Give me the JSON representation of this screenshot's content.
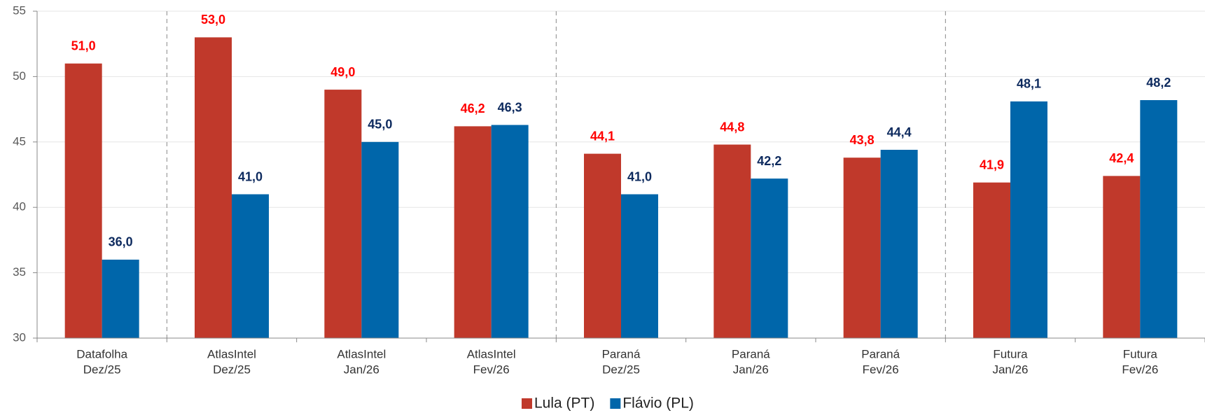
{
  "chart_data": {
    "type": "bar",
    "categories": [
      [
        "Datafolha",
        "Dez/25"
      ],
      [
        "AtlasIntel",
        "Dez/25"
      ],
      [
        "AtlasIntel",
        "Jan/26"
      ],
      [
        "AtlasIntel",
        "Fev/26"
      ],
      [
        "Paraná",
        "Dez/25"
      ],
      [
        "Paraná",
        "Jan/26"
      ],
      [
        "Paraná",
        "Fev/26"
      ],
      [
        "Futura",
        "Jan/26"
      ],
      [
        "Futura",
        "Fev/26"
      ]
    ],
    "series": [
      {
        "name": "Lula (PT)",
        "color": "#c0392b",
        "label_color": "#ff0000",
        "values": [
          51.0,
          53.0,
          49.0,
          46.2,
          44.1,
          44.8,
          43.8,
          41.9,
          42.4
        ],
        "value_labels": [
          "51,0",
          "53,0",
          "49,0",
          "46,2",
          "44,1",
          "44,8",
          "43,8",
          "41,9",
          "42,4"
        ]
      },
      {
        "name": "Flávio (PL)",
        "color": "#0066aa",
        "label_color": "#0d2a5e",
        "values": [
          36.0,
          41.0,
          45.0,
          46.3,
          41.0,
          42.2,
          44.4,
          48.1,
          48.2
        ],
        "value_labels": [
          "36,0",
          "41,0",
          "45,0",
          "46,3",
          "41,0",
          "42,2",
          "44,4",
          "48,1",
          "48,2"
        ]
      }
    ],
    "ylim": [
      30,
      55
    ],
    "yticks": [
      30,
      35,
      40,
      45,
      50,
      55
    ],
    "grid": true,
    "legend": "bottom"
  }
}
